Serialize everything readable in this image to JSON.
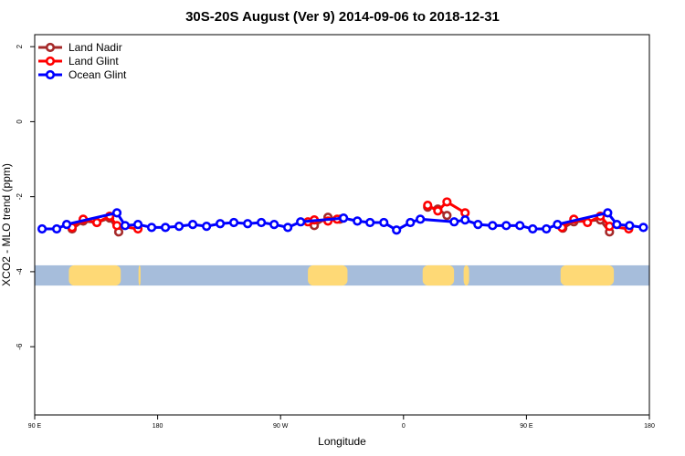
{
  "chart_data": {
    "type": "line",
    "title": "30S-20S August (Ver 9)   2014-09-06 to 2018-12-31",
    "xlabel": "Longitude",
    "ylabel": "XCO2 - MLO trend (ppm)",
    "x_units": "degrees east, continuous from 90E (90) through 180, 90W (270), 0 (360), 90E (450) to 180 (540)",
    "xlim": [
      90,
      540
    ],
    "ylim": [
      -7.82,
      2.32
    ],
    "x_ticks": [
      {
        "value": 90,
        "label": "90 E"
      },
      {
        "value": 180,
        "label": "180"
      },
      {
        "value": 270,
        "label": "90 W"
      },
      {
        "value": 360,
        "label": "0"
      },
      {
        "value": 450,
        "label": "90 E"
      },
      {
        "value": 540,
        "label": "180"
      }
    ],
    "y_ticks": [
      {
        "value": 2,
        "label": "2"
      },
      {
        "value": 0,
        "label": "0"
      },
      {
        "value": -2,
        "label": "-2"
      },
      {
        "value": -4,
        "label": "-4"
      },
      {
        "value": -6,
        "label": "-6"
      }
    ],
    "grid": false,
    "legend_position": "top-left",
    "map_band": {
      "y_range": [
        -4.37,
        -3.83
      ],
      "ocean_color": "#a6bddb",
      "land_color": "#fed976",
      "land": [
        [
          115,
          153
        ],
        [
          166,
          167.5
        ],
        [
          290,
          319
        ],
        [
          374,
          397
        ],
        [
          404,
          408
        ],
        [
          475,
          514
        ]
      ]
    },
    "series": [
      {
        "name": "Land Nadir",
        "color": "#a52a2a",
        "points": [
          [
            117.4,
            -2.86
          ],
          [
            125.5,
            -2.65
          ],
          [
            135.5,
            -2.69
          ],
          [
            144.9,
            -2.57
          ],
          [
            151.5,
            -2.94
          ],
          null,
          [
            294.7,
            -2.77
          ],
          [
            304.7,
            -2.55
          ],
          [
            313.4,
            -2.6
          ],
          null,
          [
            377.7,
            -2.28
          ],
          [
            385.1,
            -2.33
          ],
          [
            391.8,
            -2.5
          ],
          null,
          [
            476.6,
            -2.84
          ],
          [
            484.7,
            -2.67
          ],
          [
            504.1,
            -2.62
          ],
          [
            510.8,
            -2.94
          ]
        ]
      },
      {
        "name": "Land Glint",
        "color": "#ff0000",
        "points": [
          [
            117.4,
            -2.82
          ],
          [
            125.5,
            -2.6
          ],
          [
            135.5,
            -2.69
          ],
          [
            144.9,
            -2.52
          ],
          [
            150.2,
            -2.77
          ],
          [
            165.6,
            -2.86
          ],
          null,
          [
            290,
            -2.67
          ],
          [
            294.7,
            -2.62
          ],
          [
            304.7,
            -2.65
          ],
          [
            311.4,
            -2.6
          ],
          null,
          [
            377.7,
            -2.23
          ],
          [
            385.1,
            -2.38
          ],
          [
            391.8,
            -2.14
          ],
          [
            405.1,
            -2.43
          ],
          null,
          [
            476,
            -2.82
          ],
          [
            484.7,
            -2.6
          ],
          [
            494.7,
            -2.69
          ],
          [
            504.1,
            -2.52
          ],
          [
            510.8,
            -2.79
          ],
          [
            524.9,
            -2.86
          ]
        ]
      },
      {
        "name": "Ocean Glint",
        "color": "#0000ff",
        "points": [
          [
            95.4,
            -2.86
          ],
          [
            106.1,
            -2.86
          ],
          [
            113.4,
            -2.74
          ],
          [
            150.2,
            -2.43
          ],
          [
            156.2,
            -2.77
          ],
          [
            165.6,
            -2.74
          ],
          [
            175.6,
            -2.82
          ],
          [
            185.7,
            -2.82
          ],
          [
            195.7,
            -2.79
          ],
          [
            205.7,
            -2.74
          ],
          [
            215.8,
            -2.79
          ],
          [
            225.8,
            -2.72
          ],
          [
            235.8,
            -2.69
          ],
          [
            245.9,
            -2.72
          ],
          [
            255.9,
            -2.69
          ],
          [
            265.3,
            -2.74
          ],
          [
            275.3,
            -2.82
          ],
          [
            284.7,
            -2.67
          ],
          [
            316.1,
            -2.57
          ],
          [
            326.2,
            -2.65
          ],
          [
            335.5,
            -2.69
          ],
          [
            345.6,
            -2.69
          ],
          [
            354.9,
            -2.89
          ],
          [
            365,
            -2.69
          ],
          [
            372.3,
            -2.6
          ],
          [
            397.1,
            -2.67
          ],
          [
            405.1,
            -2.62
          ],
          [
            414.5,
            -2.74
          ],
          [
            425.2,
            -2.77
          ],
          [
            435.2,
            -2.77
          ],
          [
            445.2,
            -2.77
          ],
          [
            454.6,
            -2.86
          ],
          [
            464.6,
            -2.86
          ],
          [
            472.7,
            -2.74
          ],
          [
            509.5,
            -2.43
          ],
          [
            516.2,
            -2.74
          ],
          [
            525.5,
            -2.77
          ],
          [
            535.6,
            -2.82
          ]
        ]
      }
    ]
  }
}
